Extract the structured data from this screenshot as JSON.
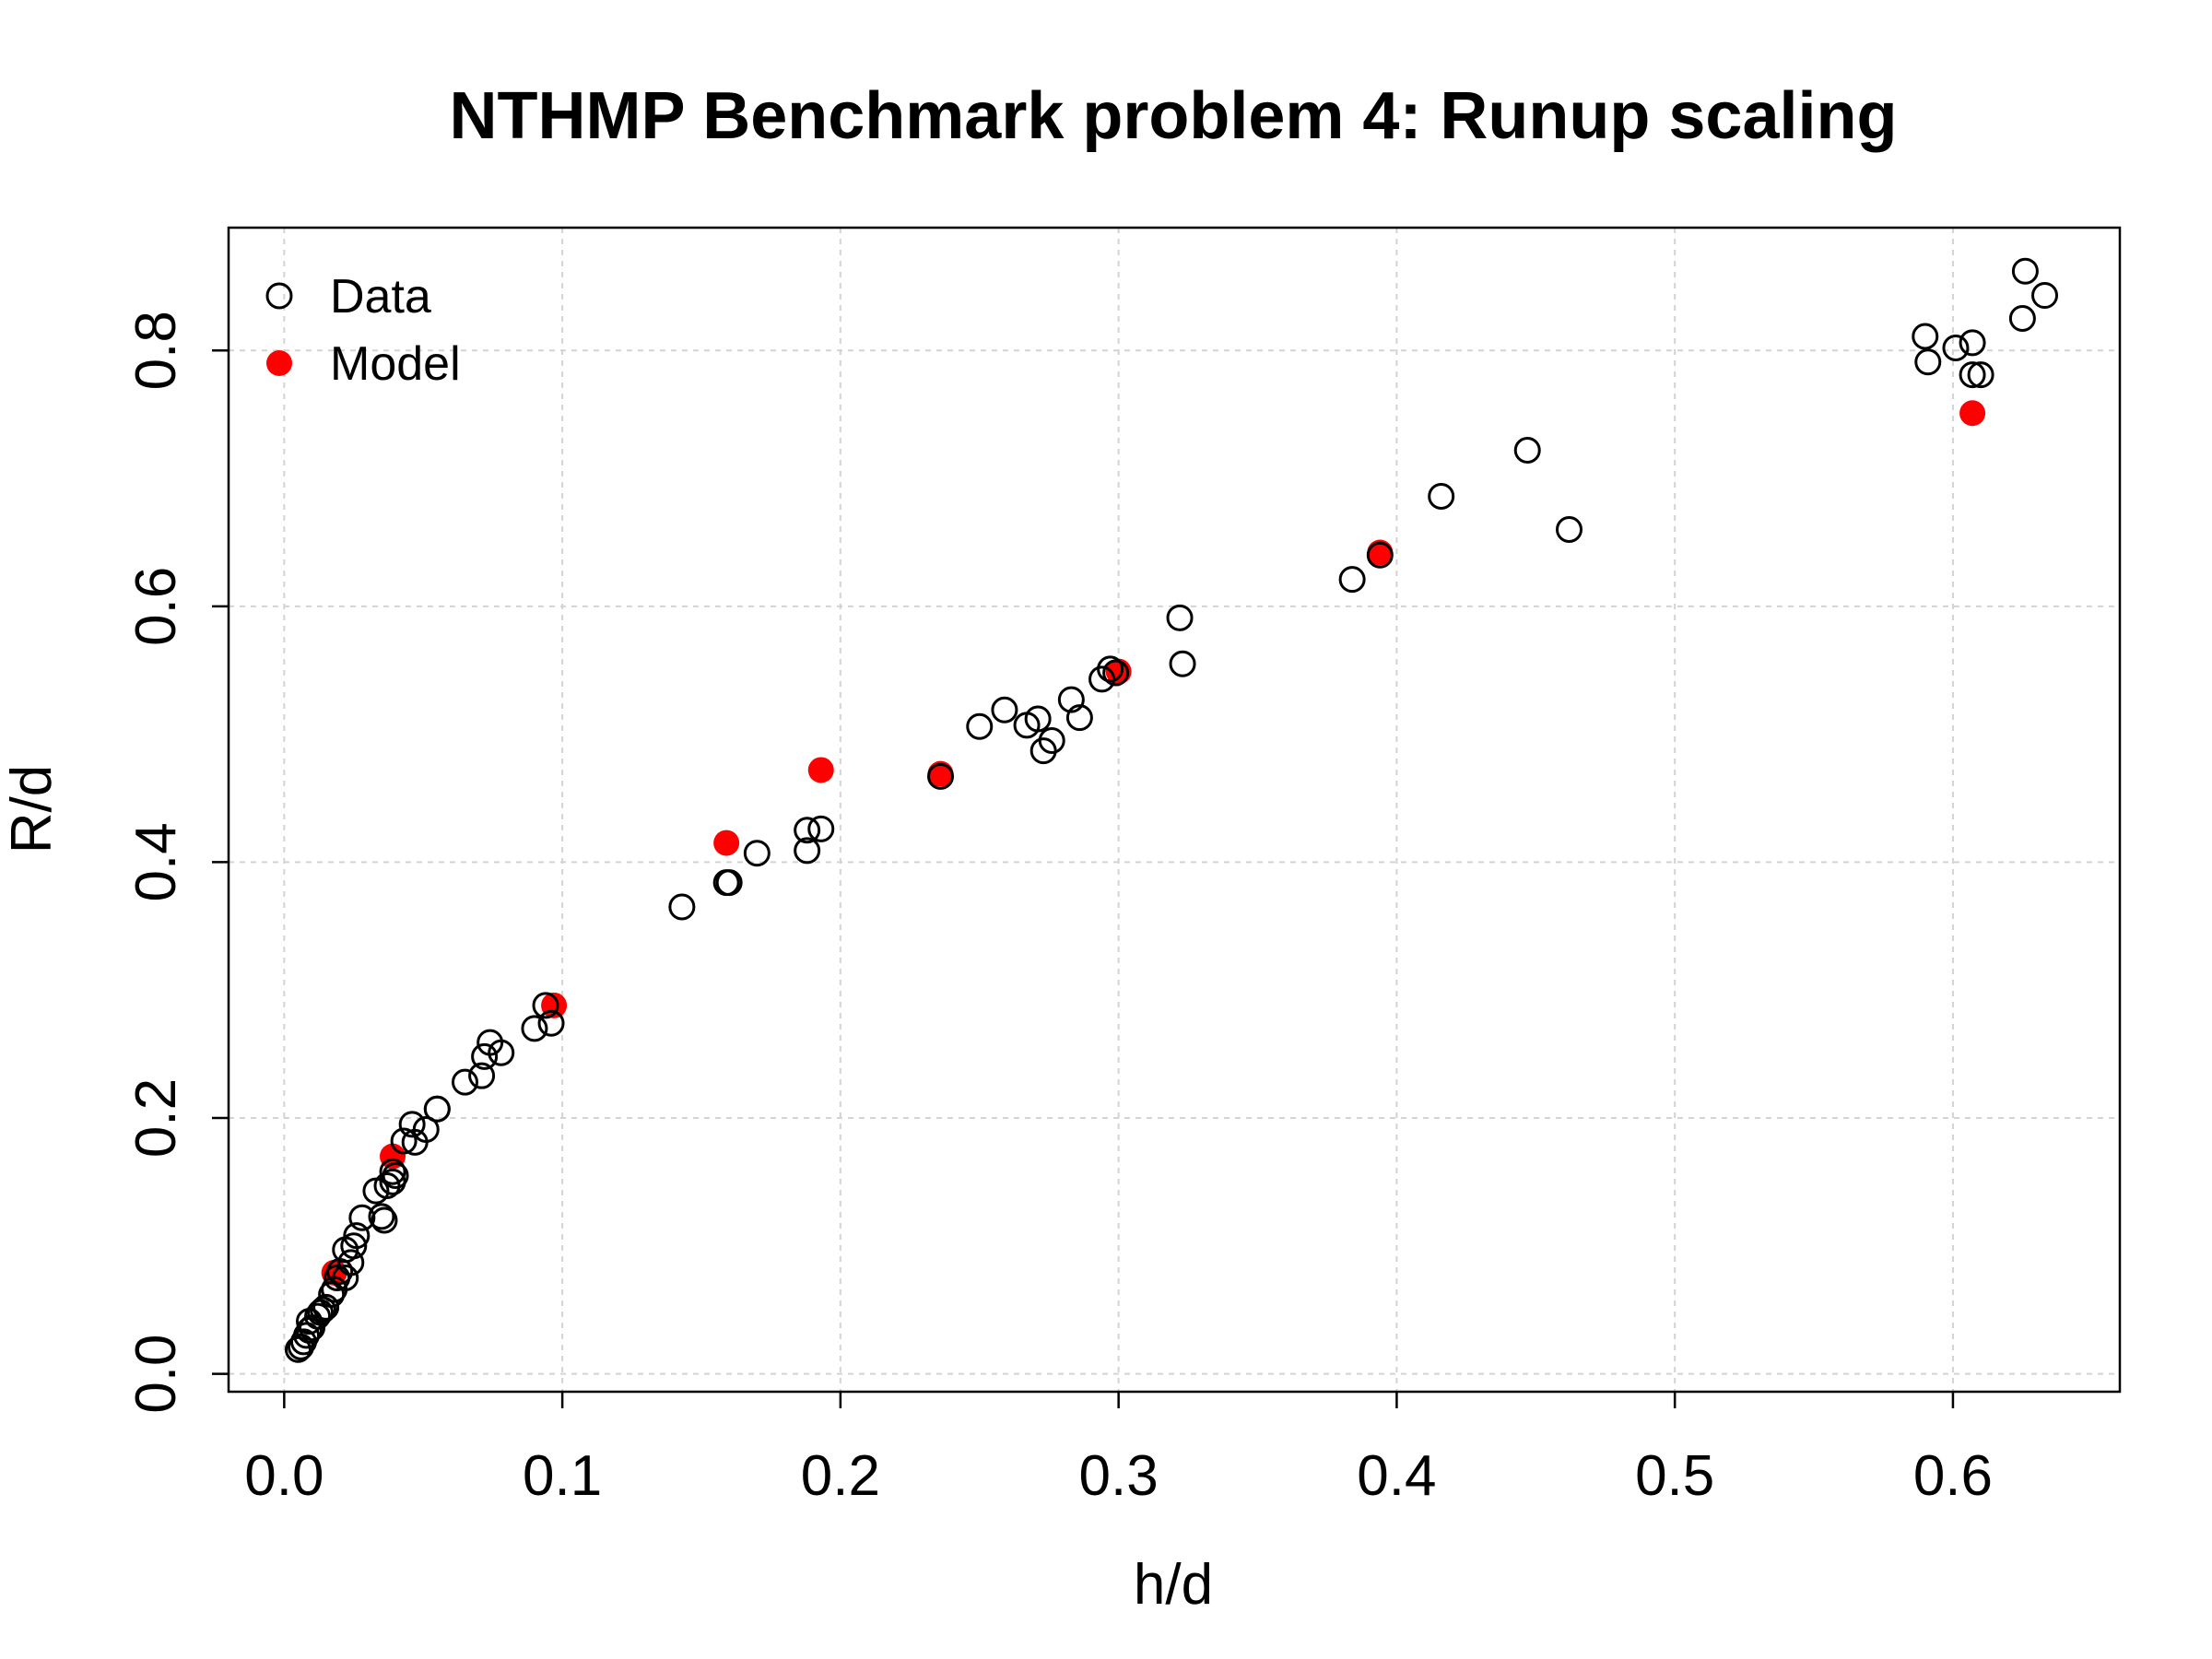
{
  "chart_data": {
    "type": "scatter",
    "title": "NTHMP Benchmark problem 4: Runup scaling",
    "xlabel": "h/d",
    "ylabel": "R/d",
    "xlim": [
      -0.02,
      0.66
    ],
    "ylim": [
      -0.014,
      0.896
    ],
    "xticks": [
      0.0,
      0.1,
      0.2,
      0.3,
      0.4,
      0.5,
      0.6
    ],
    "xtick_labels": [
      "0.0",
      "0.1",
      "0.2",
      "0.3",
      "0.4",
      "0.5",
      "0.6"
    ],
    "yticks": [
      0.0,
      0.2,
      0.4,
      0.6,
      0.8
    ],
    "ytick_labels": [
      "0.0",
      "0.2",
      "0.4",
      "0.6",
      "0.8"
    ],
    "grid": true,
    "legend_position": "top-left",
    "legend": [
      {
        "label": "Data",
        "marker": "open-circle",
        "color": "#000000"
      },
      {
        "label": "Model",
        "marker": "filled-circle",
        "color": "#ff0000"
      }
    ],
    "series": [
      {
        "name": "Data",
        "marker": "open-circle",
        "color": "#000000",
        "points": [
          [
            0.005,
            0.019
          ],
          [
            0.006,
            0.021
          ],
          [
            0.007,
            0.025
          ],
          [
            0.008,
            0.03
          ],
          [
            0.009,
            0.034
          ],
          [
            0.009,
            0.041
          ],
          [
            0.01,
            0.036
          ],
          [
            0.012,
            0.045
          ],
          [
            0.013,
            0.048
          ],
          [
            0.014,
            0.05
          ],
          [
            0.015,
            0.052
          ],
          [
            0.017,
            0.062
          ],
          [
            0.018,
            0.066
          ],
          [
            0.019,
            0.075
          ],
          [
            0.02,
            0.08
          ],
          [
            0.022,
            0.075
          ],
          [
            0.022,
            0.097
          ],
          [
            0.024,
            0.087
          ],
          [
            0.025,
            0.1
          ],
          [
            0.026,
            0.108
          ],
          [
            0.028,
            0.122
          ],
          [
            0.033,
            0.143
          ],
          [
            0.035,
            0.123
          ],
          [
            0.036,
            0.12
          ],
          [
            0.037,
            0.147
          ],
          [
            0.039,
            0.15
          ],
          [
            0.039,
            0.158
          ],
          [
            0.04,
            0.155
          ],
          [
            0.043,
            0.182
          ],
          [
            0.046,
            0.195
          ],
          [
            0.047,
            0.181
          ],
          [
            0.051,
            0.191
          ],
          [
            0.055,
            0.207
          ],
          [
            0.055,
            0.207
          ],
          [
            0.065,
            0.228
          ],
          [
            0.071,
            0.233
          ],
          [
            0.072,
            0.248
          ],
          [
            0.074,
            0.259
          ],
          [
            0.078,
            0.251
          ],
          [
            0.09,
            0.27
          ],
          [
            0.094,
            0.288
          ],
          [
            0.096,
            0.274
          ],
          [
            0.143,
            0.365
          ],
          [
            0.159,
            0.384
          ],
          [
            0.16,
            0.384
          ],
          [
            0.17,
            0.407
          ],
          [
            0.188,
            0.409
          ],
          [
            0.188,
            0.425
          ],
          [
            0.193,
            0.426
          ],
          [
            0.236,
            0.467
          ],
          [
            0.25,
            0.506
          ],
          [
            0.259,
            0.519
          ],
          [
            0.267,
            0.507
          ],
          [
            0.271,
            0.512
          ],
          [
            0.273,
            0.487
          ],
          [
            0.276,
            0.495
          ],
          [
            0.283,
            0.527
          ],
          [
            0.286,
            0.513
          ],
          [
            0.294,
            0.543
          ],
          [
            0.297,
            0.551
          ],
          [
            0.299,
            0.548
          ],
          [
            0.322,
            0.591
          ],
          [
            0.323,
            0.555
          ],
          [
            0.384,
            0.621
          ],
          [
            0.394,
            0.64
          ],
          [
            0.416,
            0.686
          ],
          [
            0.447,
            0.722
          ],
          [
            0.462,
            0.66
          ],
          [
            0.59,
            0.811
          ],
          [
            0.591,
            0.791
          ],
          [
            0.601,
            0.802
          ],
          [
            0.607,
            0.806
          ],
          [
            0.607,
            0.781
          ],
          [
            0.61,
            0.781
          ],
          [
            0.625,
            0.825
          ],
          [
            0.626,
            0.862
          ],
          [
            0.633,
            0.843
          ]
        ]
      },
      {
        "name": "Model",
        "marker": "filled-circle",
        "color": "#ff0000",
        "points": [
          [
            0.018,
            0.079
          ],
          [
            0.039,
            0.17
          ],
          [
            0.097,
            0.288
          ],
          [
            0.159,
            0.415
          ],
          [
            0.193,
            0.472
          ],
          [
            0.236,
            0.469
          ],
          [
            0.3,
            0.549
          ],
          [
            0.394,
            0.642
          ],
          [
            0.607,
            0.751
          ]
        ]
      }
    ]
  }
}
